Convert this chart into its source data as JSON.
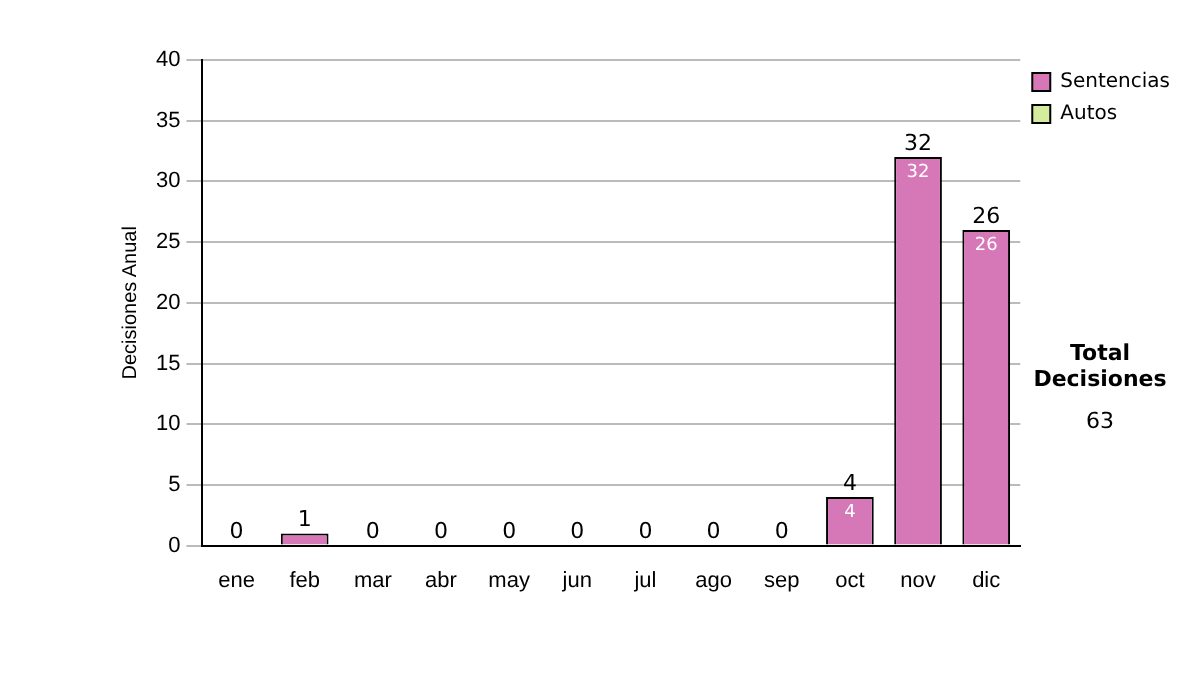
{
  "chart_data": {
    "type": "bar",
    "ylabel": "Decisiones Anual",
    "categories": [
      "ene",
      "feb",
      "mar",
      "abr",
      "may",
      "jun",
      "jul",
      "ago",
      "sep",
      "oct",
      "nov",
      "dic"
    ],
    "stacked": true,
    "series": [
      {
        "name": "Sentencias",
        "color": "#d677b8",
        "values": [
          0,
          1,
          0,
          0,
          0,
          0,
          0,
          0,
          0,
          4,
          32,
          26
        ],
        "value_labels": [
          null,
          null,
          null,
          null,
          null,
          null,
          null,
          null,
          null,
          "4",
          "32",
          "26"
        ]
      },
      {
        "name": "Autos",
        "color": "#d4ec9c",
        "values": [
          0,
          0,
          0,
          0,
          0,
          0,
          0,
          0,
          0,
          0,
          0,
          0
        ]
      }
    ],
    "totals": [
      "0",
      "1",
      "0",
      "0",
      "0",
      "0",
      "0",
      "0",
      "0",
      "4",
      "32",
      "26"
    ],
    "ylim": [
      0,
      40
    ],
    "yticks": [
      0,
      5,
      10,
      15,
      20,
      25,
      30,
      35,
      40
    ],
    "grid": "y",
    "legend": "right",
    "annotations": [
      "Total Decisiones",
      "63"
    ]
  }
}
